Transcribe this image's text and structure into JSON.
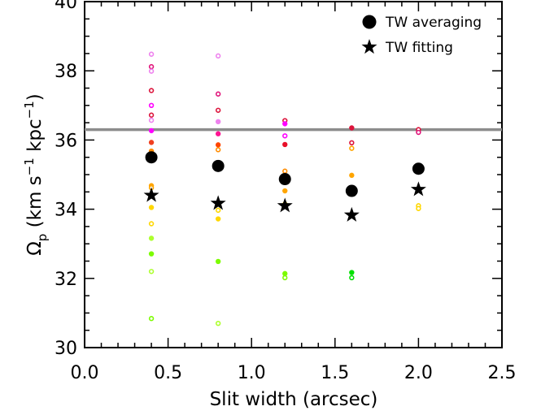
{
  "chart_data": {
    "type": "scatter",
    "xlabel": "Slit width (arcsec)",
    "ylabel": {
      "main": "Ω",
      "main_sub": "p",
      "open": " (km s",
      "exp1": "−1",
      "mid": " kpc",
      "exp2": "−1",
      "close": ")"
    },
    "xlim": [
      0.0,
      2.5
    ],
    "ylim": [
      30,
      40
    ],
    "x_ticks": [
      "0.0",
      "0.5",
      "1.0",
      "1.5",
      "2.0",
      "2.5"
    ],
    "y_ticks": [
      "30",
      "32",
      "34",
      "36",
      "38",
      "40"
    ],
    "reference_line": {
      "y": 36.3,
      "color": "#8c8c8c"
    },
    "legend": {
      "position": "top-right",
      "entries": [
        {
          "label": "TW averaging",
          "marker": "filled-circle"
        },
        {
          "label": "TW fitting",
          "marker": "star"
        }
      ]
    },
    "series": [
      {
        "name": "TW averaging",
        "marker": "filled-circle",
        "color": "#000000",
        "points": [
          {
            "x": 0.4,
            "y": 35.5
          },
          {
            "x": 0.8,
            "y": 35.25
          },
          {
            "x": 1.2,
            "y": 34.87
          },
          {
            "x": 1.6,
            "y": 34.53
          },
          {
            "x": 2.0,
            "y": 35.17
          }
        ]
      },
      {
        "name": "TW fitting",
        "marker": "star",
        "color": "#000000",
        "points": [
          {
            "x": 0.4,
            "y": 34.4
          },
          {
            "x": 0.8,
            "y": 34.17
          },
          {
            "x": 1.2,
            "y": 34.1
          },
          {
            "x": 1.6,
            "y": 33.83
          },
          {
            "x": 2.0,
            "y": 34.57
          }
        ]
      },
      {
        "marker": "small-circles",
        "points": [
          {
            "x": 0.4,
            "y": 38.48,
            "color": "#ee82ee",
            "filled": false
          },
          {
            "x": 0.4,
            "y": 38.12,
            "color": "#e0147a",
            "filled": false
          },
          {
            "x": 0.4,
            "y": 37.99,
            "color": "#ee82ee",
            "filled": false
          },
          {
            "x": 0.4,
            "y": 37.43,
            "color": "#dc143c",
            "filled": false
          },
          {
            "x": 0.4,
            "y": 37.0,
            "color": "#ff00ff",
            "filled": false
          },
          {
            "x": 0.4,
            "y": 36.72,
            "color": "#dc143c",
            "filled": false
          },
          {
            "x": 0.4,
            "y": 36.57,
            "color": "#ee82ee",
            "filled": false
          },
          {
            "x": 0.4,
            "y": 36.27,
            "color": "#ff00ff",
            "filled": true
          },
          {
            "x": 0.4,
            "y": 35.93,
            "color": "#f04020",
            "filled": true
          },
          {
            "x": 0.4,
            "y": 35.68,
            "color": "#ff8c00",
            "filled": true
          },
          {
            "x": 0.4,
            "y": 34.68,
            "color": "#ffa500",
            "filled": true
          },
          {
            "x": 0.4,
            "y": 34.62,
            "color": "#ffa500",
            "filled": false
          },
          {
            "x": 0.4,
            "y": 34.05,
            "color": "#ffd700",
            "filled": true
          },
          {
            "x": 0.4,
            "y": 33.58,
            "color": "#ffd700",
            "filled": false
          },
          {
            "x": 0.4,
            "y": 33.16,
            "color": "#adff2f",
            "filled": true
          },
          {
            "x": 0.4,
            "y": 32.71,
            "color": "#7cfc00",
            "filled": true
          },
          {
            "x": 0.4,
            "y": 32.2,
            "color": "#adff2f",
            "filled": false
          },
          {
            "x": 0.4,
            "y": 30.84,
            "color": "#7cfc00",
            "filled": false
          },
          {
            "x": 0.8,
            "y": 38.43,
            "color": "#ee82ee",
            "filled": false
          },
          {
            "x": 0.8,
            "y": 37.33,
            "color": "#e0147a",
            "filled": false
          },
          {
            "x": 0.8,
            "y": 36.86,
            "color": "#dc143c",
            "filled": false
          },
          {
            "x": 0.8,
            "y": 36.53,
            "color": "#ee82ee",
            "filled": true
          },
          {
            "x": 0.8,
            "y": 36.18,
            "color": "#ff1493",
            "filled": true
          },
          {
            "x": 0.8,
            "y": 35.86,
            "color": "#ff4500",
            "filled": true
          },
          {
            "x": 0.8,
            "y": 35.72,
            "color": "#ff8c00",
            "filled": false
          },
          {
            "x": 0.8,
            "y": 35.2,
            "color": "#ffa500",
            "filled": false
          },
          {
            "x": 0.8,
            "y": 33.97,
            "color": "#ffd700",
            "filled": false
          },
          {
            "x": 0.8,
            "y": 33.72,
            "color": "#ffd700",
            "filled": true
          },
          {
            "x": 0.8,
            "y": 32.49,
            "color": "#7cfc00",
            "filled": true
          },
          {
            "x": 0.8,
            "y": 30.7,
            "color": "#adff2f",
            "filled": false
          },
          {
            "x": 1.2,
            "y": 36.56,
            "color": "#dc143c",
            "filled": false
          },
          {
            "x": 1.2,
            "y": 36.47,
            "color": "#ff00ff",
            "filled": true
          },
          {
            "x": 1.2,
            "y": 36.12,
            "color": "#ff00ff",
            "filled": false
          },
          {
            "x": 1.2,
            "y": 35.87,
            "color": "#e8102a",
            "filled": true
          },
          {
            "x": 1.2,
            "y": 35.1,
            "color": "#ff8c00",
            "filled": false
          },
          {
            "x": 1.2,
            "y": 34.53,
            "color": "#ffa500",
            "filled": true
          },
          {
            "x": 1.2,
            "y": 34.15,
            "color": "#ffd700",
            "filled": false
          },
          {
            "x": 1.2,
            "y": 32.14,
            "color": "#7cfc00",
            "filled": true
          },
          {
            "x": 1.2,
            "y": 32.02,
            "color": "#7cfc00",
            "filled": false
          },
          {
            "x": 1.6,
            "y": 36.35,
            "color": "#dc143c",
            "filled": true
          },
          {
            "x": 1.6,
            "y": 35.92,
            "color": "#dc143c",
            "filled": false
          },
          {
            "x": 1.6,
            "y": 35.76,
            "color": "#ffa500",
            "filled": false
          },
          {
            "x": 1.6,
            "y": 34.98,
            "color": "#ffa500",
            "filled": true
          },
          {
            "x": 1.6,
            "y": 32.17,
            "color": "#00e000",
            "filled": true
          },
          {
            "x": 1.6,
            "y": 32.02,
            "color": "#00e000",
            "filled": false
          },
          {
            "x": 2.0,
            "y": 36.3,
            "color": "#dc143c",
            "filled": false
          },
          {
            "x": 2.0,
            "y": 36.22,
            "color": "#e0147a",
            "filled": false
          },
          {
            "x": 2.0,
            "y": 34.1,
            "color": "#ffd700",
            "filled": false
          },
          {
            "x": 2.0,
            "y": 34.02,
            "color": "#ffd700",
            "filled": false
          }
        ]
      }
    ]
  }
}
